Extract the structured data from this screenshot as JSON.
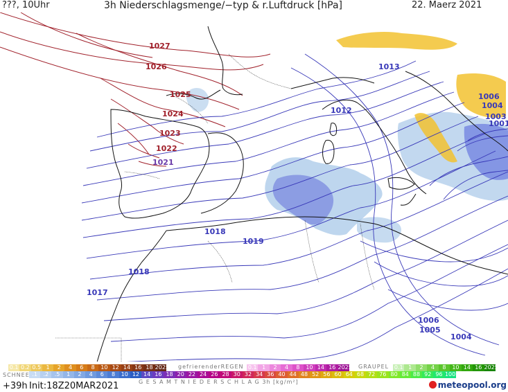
{
  "header": {
    "left": "???, 10Uhr",
    "title": "3h Niederschlagsmenge/−typ & r.Luftdruck [hPa]",
    "date": "22. Maerz 2021"
  },
  "isobars": {
    "labels": [
      "1027",
      "1026",
      "1025",
      "1024",
      "1023",
      "1022",
      "1021",
      "1018",
      "1019",
      "1018",
      "1017",
      "1013",
      "1012",
      "1006",
      "1004",
      "1003",
      "1001",
      "1006",
      "1005",
      "1004"
    ],
    "colors": {
      "high": "#a0202a",
      "low": "#3838b8",
      "mid": "#6a3aa8",
      "coast": "#111111"
    }
  },
  "legend": {
    "rain_scale": [
      "0.1",
      "0.2",
      "0.5",
      "1",
      "2",
      "4",
      "6",
      "8",
      "10",
      "12",
      "14",
      "16",
      "18",
      "2025+"
    ],
    "freezing_rain_title": "gefrierenderREGEN",
    "freezing_rain_scale": [
      "0.1",
      "1",
      "2",
      "4",
      "8",
      "10",
      "14",
      "16",
      "2025+"
    ],
    "graupel_title": "GRAUPEL",
    "graupel_scale": [
      "0.1",
      "1",
      "2",
      "4",
      "8",
      "10",
      "14",
      "16",
      "2025+"
    ],
    "snow_title": "SCHNEE",
    "snow_scale": [
      ".1",
      ".2",
      ".5",
      "1",
      "2",
      "4",
      "6",
      "8",
      "10",
      "12",
      "14",
      "16",
      "18",
      "20",
      "22",
      "24",
      "26",
      "28",
      "30",
      "32",
      "34",
      "36",
      "40",
      "44",
      "48",
      "52",
      "56",
      "60",
      "64",
      "68",
      "72",
      "76",
      "80",
      "84",
      "88",
      "92",
      "96",
      "100"
    ],
    "total_title": "G E S A M T N I E D E R S C H L A G   3h   [kg/m²]"
  },
  "footer": {
    "lead": "+39h",
    "init": "Init:18Z20MAR2021",
    "logo": "meteopool.org"
  }
}
